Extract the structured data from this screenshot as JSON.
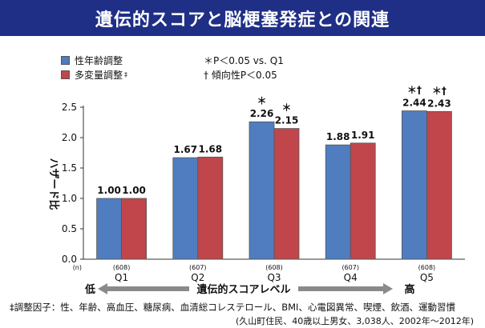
{
  "banner": {
    "title": "遺伝的スコアと脳梗塞発症との関連"
  },
  "legend": {
    "series1": "性年齢調整",
    "series2": "多変量調整",
    "series2_mark": "‡"
  },
  "notes": {
    "note1": "＊P＜0.05 vs. Q1",
    "note2": "† 傾向性P＜0.05"
  },
  "colors": {
    "series1": "#4f7dc0",
    "series2": "#c0464b",
    "banner": "#1f2f86"
  },
  "chart_data": {
    "type": "bar",
    "categories": [
      "Q1",
      "Q2",
      "Q3",
      "Q4",
      "Q5"
    ],
    "n_labels": [
      "(608)",
      "(607)",
      "(608)",
      "(607)",
      "(608)"
    ],
    "n_prefix": "(n)",
    "series": [
      {
        "name": "性年齢調整",
        "values": [
          1.0,
          1.67,
          2.26,
          1.88,
          2.44
        ],
        "labels": [
          "1.00",
          "1.67",
          "2.26",
          "1.88",
          "2.44"
        ],
        "marks": [
          "",
          "",
          "＊",
          "",
          "＊†"
        ]
      },
      {
        "name": "多変量調整",
        "values": [
          1.0,
          1.68,
          2.15,
          1.91,
          2.43
        ],
        "labels": [
          "1.00",
          "1.68",
          "2.15",
          "1.91",
          "2.43"
        ],
        "marks": [
          "",
          "",
          "＊",
          "",
          "＊†"
        ]
      }
    ],
    "ylabel": "ハザード比",
    "ylim": [
      0,
      2.5
    ],
    "yticks": [
      "0.0",
      "0.5",
      "1.0",
      "1.5",
      "2.0",
      "2.5"
    ],
    "xaxis": {
      "label": "遺伝的スコアレベル",
      "low": "低",
      "high": "高"
    },
    "grid": false
  },
  "footnote": {
    "line1": "‡調整因子：性、年齢、高血圧、糖尿病、血清総コレステロール、BMI、心電図異常、喫煙、飲酒、運動習慣",
    "line2": "(久山町住民、40歳以上男女、3,038人、2002年～2012年)"
  }
}
